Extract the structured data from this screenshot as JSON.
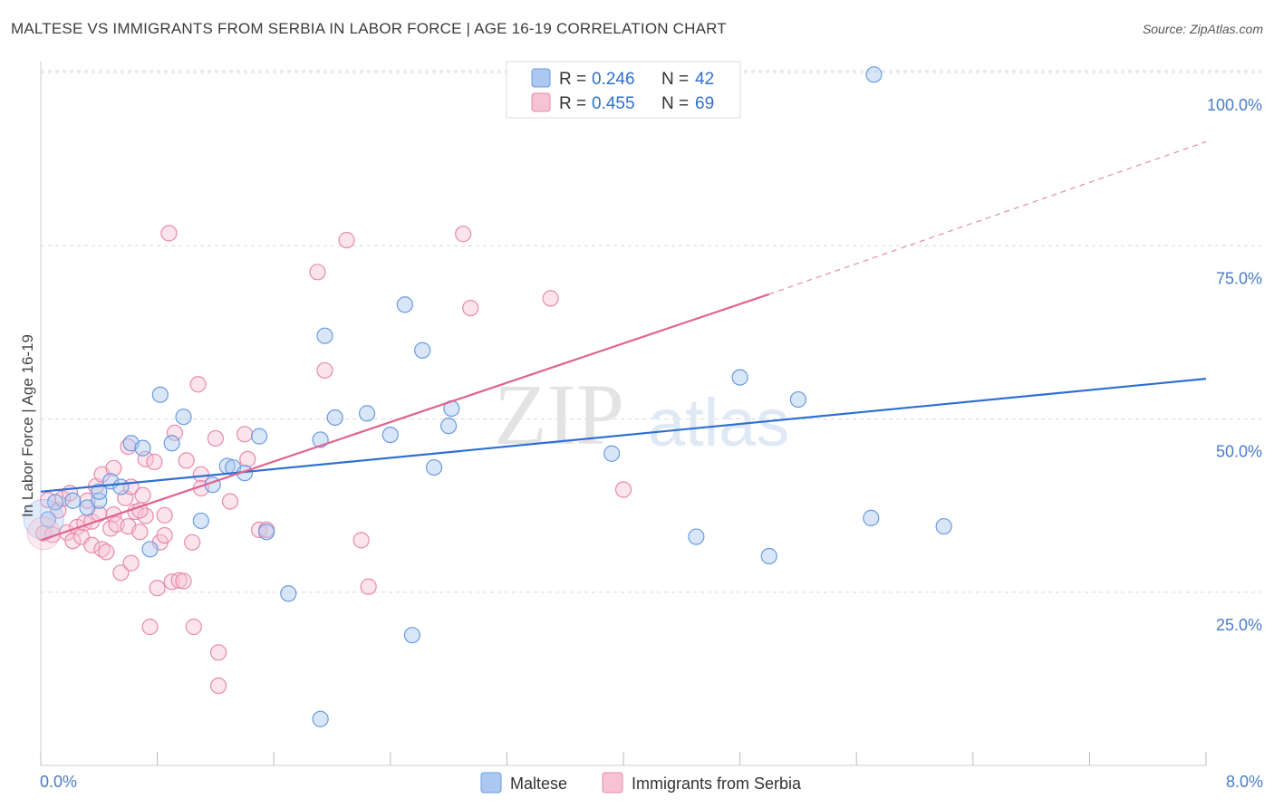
{
  "title": "MALTESE VS IMMIGRANTS FROM SERBIA IN LABOR FORCE | AGE 16-19 CORRELATION CHART",
  "source": "Source: ZipAtlas.com",
  "watermark": {
    "zip": "ZIP",
    "atlas": "atlas"
  },
  "legend": {
    "maltese": {
      "r_label": "R = ",
      "r_value": "0.246",
      "n_label": "N = ",
      "n_value": "42"
    },
    "serbia": {
      "r_label": "R = ",
      "r_value": "0.455",
      "n_label": "N = ",
      "n_value": "69"
    }
  },
  "colors": {
    "maltese": "#6a9be0",
    "maltese_fill": "#aac8f0",
    "maltese_line": "#2f6fd0",
    "serbia": "#e88aaa",
    "serbia_fill": "#f6c3d4",
    "serbia_line": "#e0648e",
    "axis_text": "#4a7cc8",
    "grid": "#d8d8d8"
  },
  "chart_data": {
    "type": "scatter",
    "title": "MALTESE VS IMMIGRANTS FROM SERBIA IN LABOR FORCE | AGE 16-19 CORRELATION CHART",
    "xlabel": "",
    "ylabel": "In Labor Force | Age 16-19",
    "xlim": [
      0,
      8
    ],
    "ylim": [
      0,
      100
    ],
    "x_tick_labels": {
      "left": "0.0%",
      "right": "8.0%"
    },
    "y_ticks": [
      25,
      50,
      75,
      100
    ],
    "y_tick_labels": [
      "25.0%",
      "50.0%",
      "75.0%",
      "100.0%"
    ],
    "grid": "horizontal dashed",
    "legend_position": "top-center",
    "series": [
      {
        "name": "Maltese",
        "key": "maltese",
        "R": 0.246,
        "N": 42,
        "points": [
          [
            0.05,
            35.5
          ],
          [
            0.1,
            38.0
          ],
          [
            0.22,
            38.2
          ],
          [
            0.32,
            37.2
          ],
          [
            0.4,
            38.2
          ],
          [
            0.4,
            39.5
          ],
          [
            0.48,
            41.0
          ],
          [
            0.55,
            40.2
          ],
          [
            0.62,
            46.5
          ],
          [
            0.7,
            45.8
          ],
          [
            0.75,
            31.2
          ],
          [
            0.82,
            53.5
          ],
          [
            0.9,
            46.5
          ],
          [
            0.98,
            50.3
          ],
          [
            1.1,
            35.3
          ],
          [
            1.18,
            40.5
          ],
          [
            1.28,
            43.2
          ],
          [
            1.32,
            43.0
          ],
          [
            1.4,
            42.2
          ],
          [
            1.5,
            47.5
          ],
          [
            1.55,
            33.7
          ],
          [
            1.7,
            24.8
          ],
          [
            1.92,
            47.0
          ],
          [
            1.92,
            6.7
          ],
          [
            1.95,
            62.0
          ],
          [
            2.02,
            50.2
          ],
          [
            2.24,
            50.8
          ],
          [
            2.4,
            47.7
          ],
          [
            2.5,
            66.5
          ],
          [
            2.55,
            18.8
          ],
          [
            2.62,
            59.9
          ],
          [
            2.7,
            43.0
          ],
          [
            2.8,
            49.0
          ],
          [
            2.82,
            51.5
          ],
          [
            3.92,
            45.0
          ],
          [
            4.5,
            33.0
          ],
          [
            4.8,
            56.0
          ],
          [
            5.0,
            30.2
          ],
          [
            5.2,
            52.8
          ],
          [
            5.7,
            35.7
          ],
          [
            6.2,
            34.5
          ],
          [
            5.72,
            99.7
          ]
        ],
        "trendline": {
          "x": [
            0,
            8
          ],
          "y": [
            39.5,
            55.8
          ]
        }
      },
      {
        "name": "Immigrants from Serbia",
        "key": "serbia",
        "R": 0.455,
        "N": 69,
        "points": [
          [
            0.02,
            33.5
          ],
          [
            0.05,
            38.3
          ],
          [
            0.08,
            33.3
          ],
          [
            0.12,
            36.8
          ],
          [
            0.15,
            38.5
          ],
          [
            0.18,
            33.6
          ],
          [
            0.2,
            39.3
          ],
          [
            0.22,
            32.4
          ],
          [
            0.25,
            34.4
          ],
          [
            0.28,
            33.0
          ],
          [
            0.3,
            35.0
          ],
          [
            0.32,
            38.2
          ],
          [
            0.35,
            35.2
          ],
          [
            0.35,
            31.8
          ],
          [
            0.38,
            40.3
          ],
          [
            0.4,
            36.3
          ],
          [
            0.42,
            31.2
          ],
          [
            0.42,
            42.0
          ],
          [
            0.45,
            30.8
          ],
          [
            0.48,
            34.2
          ],
          [
            0.5,
            36.2
          ],
          [
            0.5,
            42.9
          ],
          [
            0.52,
            34.8
          ],
          [
            0.55,
            27.8
          ],
          [
            0.58,
            38.6
          ],
          [
            0.6,
            46.0
          ],
          [
            0.6,
            34.5
          ],
          [
            0.62,
            40.2
          ],
          [
            0.62,
            29.2
          ],
          [
            0.65,
            36.6
          ],
          [
            0.68,
            33.7
          ],
          [
            0.7,
            39.0
          ],
          [
            0.72,
            44.2
          ],
          [
            0.72,
            36.0
          ],
          [
            0.75,
            20.0
          ],
          [
            0.78,
            43.8
          ],
          [
            0.8,
            25.6
          ],
          [
            0.82,
            32.2
          ],
          [
            0.85,
            36.1
          ],
          [
            0.85,
            33.2
          ],
          [
            0.88,
            76.8
          ],
          [
            0.9,
            26.5
          ],
          [
            0.92,
            48.0
          ],
          [
            0.95,
            26.7
          ],
          [
            0.98,
            26.6
          ],
          [
            1.0,
            44.0
          ],
          [
            1.04,
            32.2
          ],
          [
            1.05,
            20.0
          ],
          [
            1.08,
            55.0
          ],
          [
            1.1,
            42.0
          ],
          [
            1.1,
            40.0
          ],
          [
            1.2,
            47.2
          ],
          [
            1.22,
            16.3
          ],
          [
            1.22,
            11.5
          ],
          [
            1.3,
            38.1
          ],
          [
            1.4,
            47.8
          ],
          [
            1.42,
            44.2
          ],
          [
            1.5,
            34.0
          ],
          [
            1.9,
            71.2
          ],
          [
            1.95,
            57.0
          ],
          [
            2.1,
            75.8
          ],
          [
            2.2,
            32.5
          ],
          [
            2.25,
            25.8
          ],
          [
            2.9,
            76.7
          ],
          [
            2.95,
            66.0
          ],
          [
            3.5,
            67.4
          ],
          [
            4.0,
            39.8
          ],
          [
            1.55,
            34.0
          ],
          [
            0.68,
            36.8
          ]
        ],
        "trendline": {
          "x": [
            0,
            5.0
          ],
          "y": [
            32.5,
            68.0
          ],
          "dashed_x": [
            5.0,
            8.0
          ],
          "dashed_y": [
            68.0,
            90.0
          ]
        }
      }
    ]
  }
}
